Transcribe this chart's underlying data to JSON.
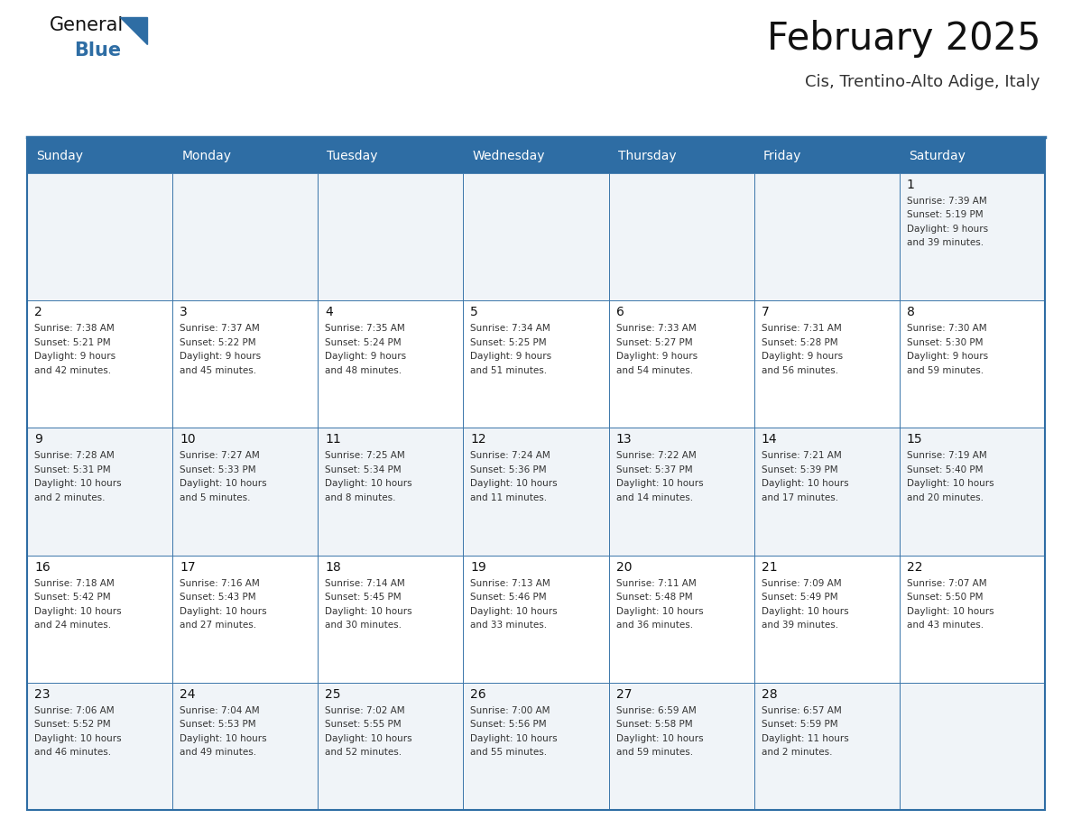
{
  "title": "February 2025",
  "subtitle": "Cis, Trentino-Alto Adige, Italy",
  "header_bg": "#2E6DA4",
  "header_text_color": "#FFFFFF",
  "cell_bg_odd": "#FFFFFF",
  "cell_bg_even": "#F0F4F8",
  "border_color": "#2E6DA4",
  "text_color": "#333333",
  "day_names": [
    "Sunday",
    "Monday",
    "Tuesday",
    "Wednesday",
    "Thursday",
    "Friday",
    "Saturday"
  ],
  "days": [
    {
      "day": 1,
      "col": 6,
      "row": 0,
      "sunrise": "7:39 AM",
      "sunset": "5:19 PM",
      "daylight": "9 hours and 39 minutes."
    },
    {
      "day": 2,
      "col": 0,
      "row": 1,
      "sunrise": "7:38 AM",
      "sunset": "5:21 PM",
      "daylight": "9 hours and 42 minutes."
    },
    {
      "day": 3,
      "col": 1,
      "row": 1,
      "sunrise": "7:37 AM",
      "sunset": "5:22 PM",
      "daylight": "9 hours and 45 minutes."
    },
    {
      "day": 4,
      "col": 2,
      "row": 1,
      "sunrise": "7:35 AM",
      "sunset": "5:24 PM",
      "daylight": "9 hours and 48 minutes."
    },
    {
      "day": 5,
      "col": 3,
      "row": 1,
      "sunrise": "7:34 AM",
      "sunset": "5:25 PM",
      "daylight": "9 hours and 51 minutes."
    },
    {
      "day": 6,
      "col": 4,
      "row": 1,
      "sunrise": "7:33 AM",
      "sunset": "5:27 PM",
      "daylight": "9 hours and 54 minutes."
    },
    {
      "day": 7,
      "col": 5,
      "row": 1,
      "sunrise": "7:31 AM",
      "sunset": "5:28 PM",
      "daylight": "9 hours and 56 minutes."
    },
    {
      "day": 8,
      "col": 6,
      "row": 1,
      "sunrise": "7:30 AM",
      "sunset": "5:30 PM",
      "daylight": "9 hours and 59 minutes."
    },
    {
      "day": 9,
      "col": 0,
      "row": 2,
      "sunrise": "7:28 AM",
      "sunset": "5:31 PM",
      "daylight": "10 hours and 2 minutes."
    },
    {
      "day": 10,
      "col": 1,
      "row": 2,
      "sunrise": "7:27 AM",
      "sunset": "5:33 PM",
      "daylight": "10 hours and 5 minutes."
    },
    {
      "day": 11,
      "col": 2,
      "row": 2,
      "sunrise": "7:25 AM",
      "sunset": "5:34 PM",
      "daylight": "10 hours and 8 minutes."
    },
    {
      "day": 12,
      "col": 3,
      "row": 2,
      "sunrise": "7:24 AM",
      "sunset": "5:36 PM",
      "daylight": "10 hours and 11 minutes."
    },
    {
      "day": 13,
      "col": 4,
      "row": 2,
      "sunrise": "7:22 AM",
      "sunset": "5:37 PM",
      "daylight": "10 hours and 14 minutes."
    },
    {
      "day": 14,
      "col": 5,
      "row": 2,
      "sunrise": "7:21 AM",
      "sunset": "5:39 PM",
      "daylight": "10 hours and 17 minutes."
    },
    {
      "day": 15,
      "col": 6,
      "row": 2,
      "sunrise": "7:19 AM",
      "sunset": "5:40 PM",
      "daylight": "10 hours and 20 minutes."
    },
    {
      "day": 16,
      "col": 0,
      "row": 3,
      "sunrise": "7:18 AM",
      "sunset": "5:42 PM",
      "daylight": "10 hours and 24 minutes."
    },
    {
      "day": 17,
      "col": 1,
      "row": 3,
      "sunrise": "7:16 AM",
      "sunset": "5:43 PM",
      "daylight": "10 hours and 27 minutes."
    },
    {
      "day": 18,
      "col": 2,
      "row": 3,
      "sunrise": "7:14 AM",
      "sunset": "5:45 PM",
      "daylight": "10 hours and 30 minutes."
    },
    {
      "day": 19,
      "col": 3,
      "row": 3,
      "sunrise": "7:13 AM",
      "sunset": "5:46 PM",
      "daylight": "10 hours and 33 minutes."
    },
    {
      "day": 20,
      "col": 4,
      "row": 3,
      "sunrise": "7:11 AM",
      "sunset": "5:48 PM",
      "daylight": "10 hours and 36 minutes."
    },
    {
      "day": 21,
      "col": 5,
      "row": 3,
      "sunrise": "7:09 AM",
      "sunset": "5:49 PM",
      "daylight": "10 hours and 39 minutes."
    },
    {
      "day": 22,
      "col": 6,
      "row": 3,
      "sunrise": "7:07 AM",
      "sunset": "5:50 PM",
      "daylight": "10 hours and 43 minutes."
    },
    {
      "day": 23,
      "col": 0,
      "row": 4,
      "sunrise": "7:06 AM",
      "sunset": "5:52 PM",
      "daylight": "10 hours and 46 minutes."
    },
    {
      "day": 24,
      "col": 1,
      "row": 4,
      "sunrise": "7:04 AM",
      "sunset": "5:53 PM",
      "daylight": "10 hours and 49 minutes."
    },
    {
      "day": 25,
      "col": 2,
      "row": 4,
      "sunrise": "7:02 AM",
      "sunset": "5:55 PM",
      "daylight": "10 hours and 52 minutes."
    },
    {
      "day": 26,
      "col": 3,
      "row": 4,
      "sunrise": "7:00 AM",
      "sunset": "5:56 PM",
      "daylight": "10 hours and 55 minutes."
    },
    {
      "day": 27,
      "col": 4,
      "row": 4,
      "sunrise": "6:59 AM",
      "sunset": "5:58 PM",
      "daylight": "10 hours and 59 minutes."
    },
    {
      "day": 28,
      "col": 5,
      "row": 4,
      "sunrise": "6:57 AM",
      "sunset": "5:59 PM",
      "daylight": "11 hours and 2 minutes."
    }
  ],
  "num_rows": 5,
  "logo_text_general": "General",
  "logo_text_blue": "Blue",
  "logo_triangle_color": "#2E6DA4",
  "fig_width": 11.88,
  "fig_height": 9.18,
  "dpi": 100
}
